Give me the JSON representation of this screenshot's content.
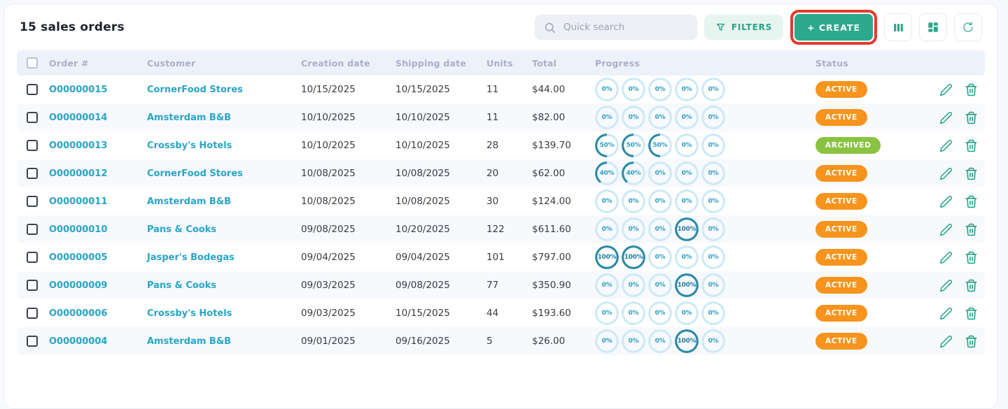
{
  "page": {
    "title": "15 sales orders"
  },
  "toolbar": {
    "search_placeholder": "Quick search",
    "filters_label": "FILTERS",
    "create_label": "+ CREATE",
    "icon_buttons": [
      "columns-icon",
      "dashboard-icon",
      "refresh-icon"
    ]
  },
  "table": {
    "columns": [
      "Order #",
      "Customer",
      "Creation date",
      "Shipping date",
      "Units",
      "Total",
      "Progress",
      "Status"
    ],
    "rows": [
      {
        "order": "O00000015",
        "customer": "CornerFood Stores",
        "creation_date": "10/15/2025",
        "shipping_date": "10/15/2025",
        "units": "11",
        "total": "$44.00",
        "progress": [
          0,
          0,
          0,
          0,
          0
        ],
        "status": "ACTIVE"
      },
      {
        "order": "O00000014",
        "customer": "Amsterdam B&B",
        "creation_date": "10/10/2025",
        "shipping_date": "10/10/2025",
        "units": "11",
        "total": "$82.00",
        "progress": [
          0,
          0,
          0,
          0,
          0
        ],
        "status": "ACTIVE"
      },
      {
        "order": "O00000013",
        "customer": "Crossby's Hotels",
        "creation_date": "10/10/2025",
        "shipping_date": "10/10/2025",
        "units": "28",
        "total": "$139.70",
        "progress": [
          50,
          50,
          50,
          0,
          0
        ],
        "status": "ARCHIVED"
      },
      {
        "order": "O00000012",
        "customer": "CornerFood Stores",
        "creation_date": "10/08/2025",
        "shipping_date": "10/08/2025",
        "units": "20",
        "total": "$62.00",
        "progress": [
          40,
          40,
          0,
          0,
          0
        ],
        "status": "ACTIVE"
      },
      {
        "order": "O00000011",
        "customer": "Amsterdam B&B",
        "creation_date": "10/08/2025",
        "shipping_date": "10/08/2025",
        "units": "30",
        "total": "$124.00",
        "progress": [
          0,
          0,
          0,
          0,
          0
        ],
        "status": "ACTIVE"
      },
      {
        "order": "O00000010",
        "customer": "Pans & Cooks",
        "creation_date": "09/08/2025",
        "shipping_date": "10/20/2025",
        "units": "122",
        "total": "$611.60",
        "progress": [
          0,
          0,
          0,
          100,
          0
        ],
        "status": "ACTIVE"
      },
      {
        "order": "O00000005",
        "customer": "Jasper's Bodegas",
        "creation_date": "09/04/2025",
        "shipping_date": "09/04/2025",
        "units": "101",
        "total": "$797.00",
        "progress": [
          100,
          100,
          0,
          0,
          0
        ],
        "status": "ACTIVE"
      },
      {
        "order": "O00000009",
        "customer": "Pans & Cooks",
        "creation_date": "09/03/2025",
        "shipping_date": "09/08/2025",
        "units": "77",
        "total": "$350.90",
        "progress": [
          0,
          0,
          0,
          100,
          0
        ],
        "status": "ACTIVE"
      },
      {
        "order": "O00000006",
        "customer": "Crossby's Hotels",
        "creation_date": "09/03/2025",
        "shipping_date": "10/15/2025",
        "units": "44",
        "total": "$193.60",
        "progress": [
          0,
          0,
          0,
          0,
          0
        ],
        "status": "ACTIVE"
      },
      {
        "order": "O00000004",
        "customer": "Amsterdam B&B",
        "creation_date": "09/01/2025",
        "shipping_date": "09/16/2025",
        "units": "5",
        "total": "$26.00",
        "progress": [
          0,
          0,
          0,
          100,
          0
        ],
        "status": "ACTIVE"
      }
    ]
  },
  "colors": {
    "accent_teal": "#27a386",
    "create_bg": "#2ca98c",
    "link_cyan": "#29a5c6",
    "highlight_red": "#e23b2e",
    "progress_ring_light": "#cdeaf6",
    "progress_ring_dark": "#2b8aa8",
    "status": {
      "ACTIVE": "#f7941d",
      "ARCHIVED": "#8ac341"
    }
  }
}
